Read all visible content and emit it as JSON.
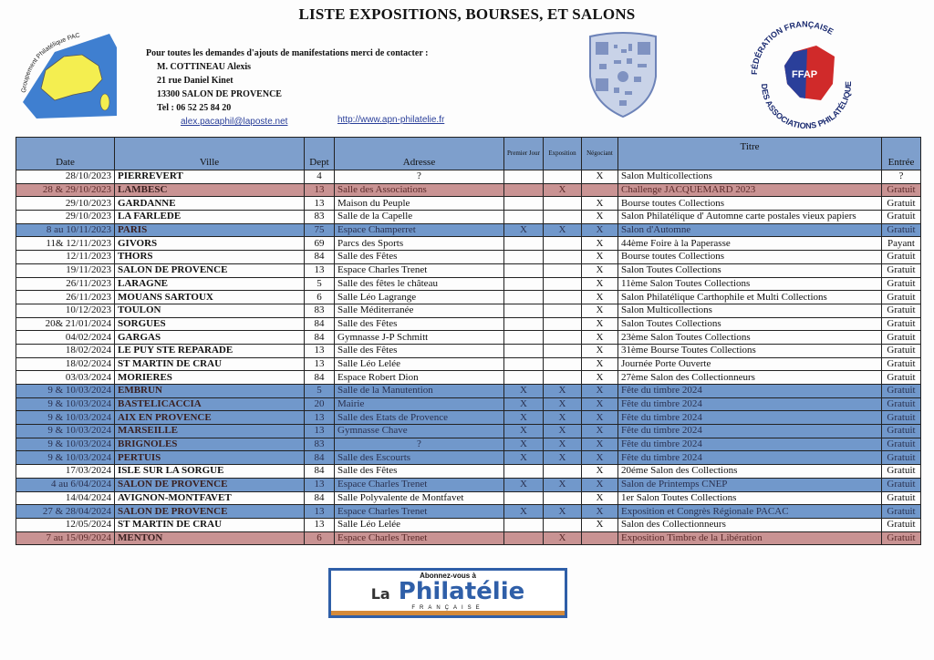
{
  "title": "LISTE EXPOSITIONS, BOURSES, ET SALONS",
  "logos": {
    "left_text": "Groupement Philatélique PACAC",
    "right_text": "FÉDÉRATION FRANÇAISE DES ASSOCIATIONS PHILATÉLIQUES",
    "right_abbr": "FFAP"
  },
  "contact": {
    "intro": "Pour toutes les demandes d'ajouts de manifestations merci de contacter :",
    "name": "M. COTTINEAU Alexis",
    "street": "21 rue Daniel Kinet",
    "city": "13300 SALON DE PROVENCE",
    "tel": "Tel : 06 52 25 84 20",
    "email": "alex.pacaphil@laposte.net",
    "website": "http://www.apn-philatelie.fr"
  },
  "colors": {
    "blue_row": "#7198cb",
    "red_row": "#c99393",
    "header": "#7e9fcc"
  },
  "table": {
    "headers": [
      "Date",
      "Ville",
      "Dept",
      "Adresse",
      "Premier Jour",
      "Exposition",
      "Négociant",
      "Titre",
      "Entrée"
    ],
    "rows": [
      {
        "hl": "none",
        "date": "28/10/2023",
        "ville": "PIERREVERT",
        "dept": "4",
        "adresse": "?",
        "pj": "",
        "expo": "",
        "nego": "X",
        "titre": "Salon Multicollections",
        "entree": "?"
      },
      {
        "hl": "red",
        "date": "28 & 29/10/2023",
        "ville": "LAMBESC",
        "dept": "13",
        "adresse": "Salle des Associations",
        "pj": "",
        "expo": "X",
        "nego": "",
        "titre": "Challenge JACQUEMARD 2023",
        "entree": "Gratuit"
      },
      {
        "hl": "none",
        "date": "29/10/2023",
        "ville": "GARDANNE",
        "dept": "13",
        "adresse": "Maison du Peuple",
        "pj": "",
        "expo": "",
        "nego": "X",
        "titre": "Bourse toutes Collections",
        "entree": "Gratuit"
      },
      {
        "hl": "none",
        "date": "29/10/2023",
        "ville": "LA FARLEDE",
        "dept": "83",
        "adresse": "Salle de la Capelle",
        "pj": "",
        "expo": "",
        "nego": "X",
        "titre": "Salon Philatélique d' Automne carte postales vieux papiers",
        "entree": "Gratuit"
      },
      {
        "hl": "blue",
        "date": "8 au 10/11/2023",
        "ville": "PARIS",
        "dept": "75",
        "adresse": "Espace Champerret",
        "pj": "X",
        "expo": "X",
        "nego": "X",
        "titre": "Salon d'Automne",
        "entree": "Gratuit"
      },
      {
        "hl": "none",
        "date": "11& 12/11/2023",
        "ville": "GIVORS",
        "dept": "69",
        "adresse": "Parcs des Sports",
        "pj": "",
        "expo": "",
        "nego": "X",
        "titre": "44ème Foire à la Paperasse",
        "entree": "Payant"
      },
      {
        "hl": "none",
        "date": "12/11/2023",
        "ville": "THORS",
        "dept": "84",
        "adresse": "Salle des Fêtes",
        "pj": "",
        "expo": "",
        "nego": "X",
        "titre": "Bourse toutes Collections",
        "entree": "Gratuit"
      },
      {
        "hl": "none",
        "date": "19/11/2023",
        "ville": "SALON DE PROVENCE",
        "dept": "13",
        "adresse": "Espace Charles Trenet",
        "pj": "",
        "expo": "",
        "nego": "X",
        "titre": "Salon Toutes Collections",
        "entree": "Gratuit"
      },
      {
        "hl": "none",
        "date": "26/11/2023",
        "ville": "LARAGNE",
        "dept": "5",
        "adresse": "Salle des fêtes le château",
        "pj": "",
        "expo": "",
        "nego": "X",
        "titre": "11ème Salon Toutes Collections",
        "entree": "Gratuit"
      },
      {
        "hl": "none",
        "date": "26/11/2023",
        "ville": "MOUANS SARTOUX",
        "dept": "6",
        "adresse": "Salle Léo Lagrange",
        "pj": "",
        "expo": "",
        "nego": "X",
        "titre": "Salon Philatélique Carthophile et Multi Collections",
        "entree": "Gratuit"
      },
      {
        "hl": "none",
        "date": "10/12/2023",
        "ville": "TOULON",
        "dept": "83",
        "adresse": "Salle Méditerranée",
        "pj": "",
        "expo": "",
        "nego": "X",
        "titre": "Salon Multicollections",
        "entree": "Gratuit"
      },
      {
        "hl": "none",
        "date": "20& 21/01/2024",
        "ville": "SORGUES",
        "dept": "84",
        "adresse": "Salle des Fêtes",
        "pj": "",
        "expo": "",
        "nego": "X",
        "titre": "Salon Toutes Collections",
        "entree": "Gratuit"
      },
      {
        "hl": "none",
        "date": "04/02/2024",
        "ville": "GARGAS",
        "dept": "84",
        "adresse": "Gymnasse J-P Schmitt",
        "pj": "",
        "expo": "",
        "nego": "X",
        "titre": "23ème Salon Toutes Collections",
        "entree": "Gratuit"
      },
      {
        "hl": "none",
        "date": "18/02/2024",
        "ville": "LE PUY STE REPARADE",
        "dept": "13",
        "adresse": "Salle des Fêtes",
        "pj": "",
        "expo": "",
        "nego": "X",
        "titre": "31ème Bourse Toutes Collections",
        "entree": "Gratuit"
      },
      {
        "hl": "none",
        "date": "18/02/2024",
        "ville": "ST MARTIN DE CRAU",
        "dept": "13",
        "adresse": "Salle Léo Lelée",
        "pj": "",
        "expo": "",
        "nego": "X",
        "titre": "Journée Porte Ouverte",
        "entree": "Gratuit"
      },
      {
        "hl": "none",
        "date": "03/03/2024",
        "ville": "MORIERES",
        "dept": "84",
        "adresse": "Espace Robert Dion",
        "pj": "",
        "expo": "",
        "nego": "X",
        "titre": "27ème Salon des Collectionneurs",
        "entree": "Gratuit"
      },
      {
        "hl": "blue",
        "date": "9 & 10/03/2024",
        "ville": "EMBRUN",
        "dept": "5",
        "adresse": "Salle de la Manutention",
        "pj": "X",
        "expo": "X",
        "nego": "X",
        "titre": "Fête du timbre 2024",
        "entree": "Gratuit"
      },
      {
        "hl": "blue",
        "date": "9 & 10/03/2024",
        "ville": "BASTELICACCIA",
        "dept": "20",
        "adresse": "Mairie",
        "pj": "X",
        "expo": "X",
        "nego": "X",
        "titre": "Fête du timbre 2024",
        "entree": "Gratuit"
      },
      {
        "hl": "blue",
        "date": "9 & 10/03/2024",
        "ville": "AIX EN PROVENCE",
        "dept": "13",
        "adresse": "Salle des Etats de Provence",
        "pj": "X",
        "expo": "X",
        "nego": "X",
        "titre": "Fête du timbre 2024",
        "entree": "Gratuit"
      },
      {
        "hl": "blue",
        "date": "9 & 10/03/2024",
        "ville": "MARSEILLE",
        "dept": "13",
        "adresse": "Gymnasse Chave",
        "pj": "X",
        "expo": "X",
        "nego": "X",
        "titre": "Fête du timbre 2024",
        "entree": "Gratuit"
      },
      {
        "hl": "blue",
        "date": "9 & 10/03/2024",
        "ville": "BRIGNOLES",
        "dept": "83",
        "adresse": "?",
        "pj": "X",
        "expo": "X",
        "nego": "X",
        "titre": "Fête du timbre 2024",
        "entree": "Gratuit"
      },
      {
        "hl": "blue",
        "date": "9 & 10/03/2024",
        "ville": "PERTUIS",
        "dept": "84",
        "adresse": "Salle des Escourts",
        "pj": "X",
        "expo": "X",
        "nego": "X",
        "titre": "Fête du timbre 2024",
        "entree": "Gratuit"
      },
      {
        "hl": "none",
        "date": "17/03/2024",
        "ville": "ISLE SUR LA SORGUE",
        "dept": "84",
        "adresse": "Salle des Fêtes",
        "pj": "",
        "expo": "",
        "nego": "X",
        "titre": "20éme Salon des Collections",
        "entree": "Gratuit"
      },
      {
        "hl": "blue",
        "date": "4 au 6/04/2024",
        "ville": "SALON DE PROVENCE",
        "dept": "13",
        "adresse": "Espace Charles Trenet",
        "pj": "X",
        "expo": "X",
        "nego": "X",
        "titre": "Salon de Printemps CNEP",
        "entree": "Gratuit"
      },
      {
        "hl": "none",
        "date": "14/04/2024",
        "ville": "AVIGNON-MONTFAVET",
        "dept": "84",
        "adresse": "Salle Polyvalente de Montfavet",
        "pj": "",
        "expo": "",
        "nego": "X",
        "titre": "1er Salon Toutes Collections",
        "entree": "Gratuit"
      },
      {
        "hl": "blue",
        "date": "27 & 28/04/2024",
        "ville": "SALON DE PROVENCE",
        "dept": "13",
        "adresse": "Espace Charles Trenet",
        "pj": "X",
        "expo": "X",
        "nego": "X",
        "titre": "Exposition et Congrès Régionale PACAC",
        "entree": "Gratuit"
      },
      {
        "hl": "none",
        "date": "12/05/2024",
        "ville": "ST MARTIN DE CRAU",
        "dept": "13",
        "adresse": "Salle Léo Lelée",
        "pj": "",
        "expo": "",
        "nego": "X",
        "titre": "Salon des Collectionneurs",
        "entree": "Gratuit"
      },
      {
        "hl": "red",
        "date": "7 au 15/09/2024",
        "ville": "MENTON",
        "dept": "6",
        "adresse": "Espace Charles Trenet",
        "pj": "",
        "expo": "X",
        "nego": "",
        "titre": "Exposition Timbre de la Libération",
        "entree": "Gratuit"
      }
    ]
  },
  "banner": {
    "top": "Abonnez-vous à",
    "la": "La",
    "main": "Philatélie",
    "sub": "FRANÇAISE"
  }
}
